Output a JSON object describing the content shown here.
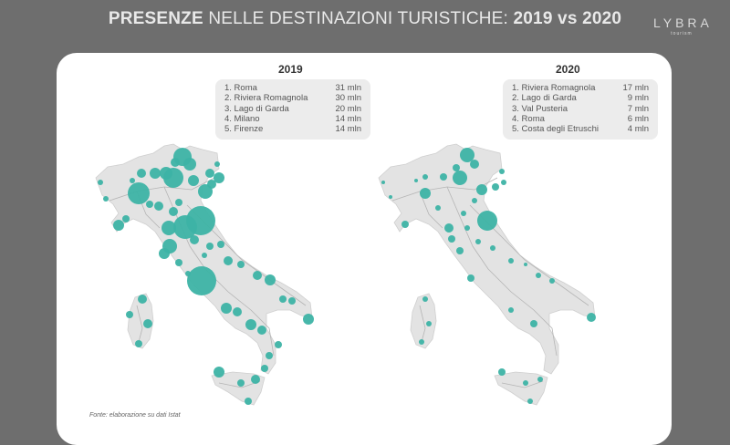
{
  "header": {
    "title_bold_1": "PRESENZE",
    "title_rest": " NELLE DESTINAZIONI TURISTICHE: ",
    "title_bold_2": "2019 vs 2020",
    "logo": "LYBRA",
    "logo_sub": "tourism"
  },
  "colors": {
    "marker": "#3db3a5",
    "land": "#e3e3e3",
    "road": "#b5b5b5"
  },
  "map_2019": {
    "year": "2019",
    "ranking": [
      {
        "label": "1. Roma",
        "value": "31 mln"
      },
      {
        "label": "2. Riviera Romagnola",
        "value": "30 mln"
      },
      {
        "label": "3. Lago di Garda",
        "value": "20 mln"
      },
      {
        "label": "4. Milano",
        "value": "14 mln"
      },
      {
        "label": "5. Firenze",
        "value": "14 mln"
      }
    ]
  },
  "map_2020": {
    "year": "2020",
    "ranking": [
      {
        "label": "1. Riviera Romagnola",
        "value": "17 mln"
      },
      {
        "label": "2. Lago di Garda",
        "value": "9 mln"
      },
      {
        "label": "3. Val Pusteria",
        "value": "7 mln"
      },
      {
        "label": "4. Roma",
        "value": "6 mln"
      },
      {
        "label": "5. Costa degli Etruschi",
        "value": "4 mln"
      }
    ]
  },
  "source": "Fonte: elaborazione su dati Istat"
}
